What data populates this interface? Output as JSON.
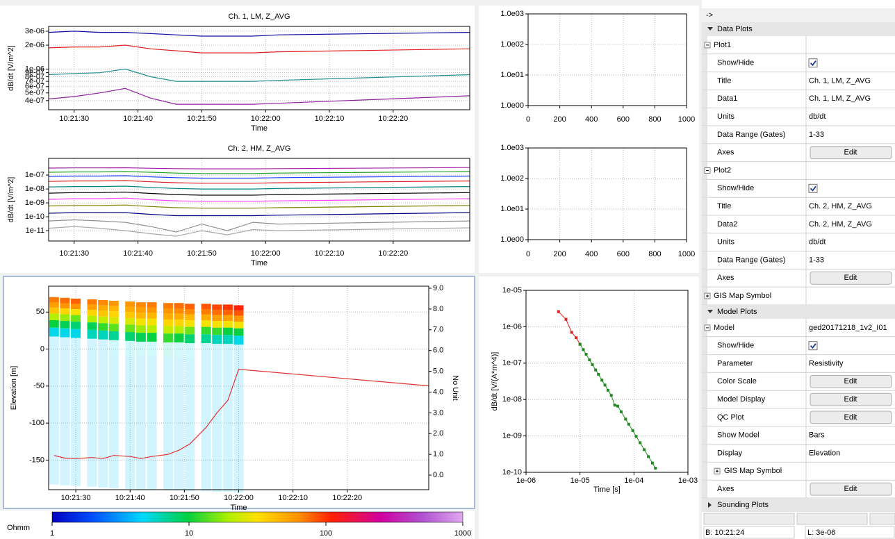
{
  "plots": [
    {
      "type": "line",
      "title": "Ch. 1, LM, Z_AVG",
      "ylabel": "dB/dt [V/m^2]",
      "xlabel": "Time",
      "log_y": true,
      "grid": true,
      "xlim": [
        "10:21:26",
        "10:22:32"
      ],
      "ylim": [
        3.07e-07,
        3.45e-06
      ],
      "xticks": [
        "10:21:30",
        "10:21:40",
        "10:21:50",
        "10:22:00",
        "10:22:10",
        "10:22:20"
      ],
      "yticks": [
        {
          "value": 3e-06,
          "label": "3e-06"
        },
        {
          "value": 2e-06,
          "label": "2e-06"
        },
        {
          "value": 1e-06,
          "label": "1e-06"
        },
        {
          "value": 9e-07,
          "label": "9e-07"
        },
        {
          "value": 8e-07,
          "label": "8e-07"
        },
        {
          "value": 7e-07,
          "label": "7e-07"
        },
        {
          "value": 6e-07,
          "label": "6e-07"
        },
        {
          "value": 5e-07,
          "label": "5e-07"
        },
        {
          "value": 4e-07,
          "label": "4e-07"
        }
      ],
      "x": [
        "10:21:26",
        "10:21:30",
        "10:21:34",
        "10:21:38",
        "10:21:42",
        "10:21:46",
        "10:21:50",
        "10:21:54",
        "10:21:58",
        "10:22:02",
        "10:22:32"
      ],
      "series": [
        {
          "color": "#1010a0",
          "values": [
            2.9e-06,
            3e-06,
            2.9e-06,
            2.9e-06,
            2.8e-06,
            2.7e-06,
            2.6e-06,
            2.6e-06,
            2.6e-06,
            2.7e-06,
            2.9e-06
          ]
        },
        {
          "color": "#e02020",
          "values": [
            1.85e-06,
            1.9e-06,
            1.9e-06,
            2e-06,
            1.8e-06,
            1.7e-06,
            1.6e-06,
            1.6e-06,
            1.6e-06,
            1.65e-06,
            1.8e-06
          ]
        },
        {
          "color": "#208c8c",
          "values": [
            8.5e-07,
            8.8e-07,
            9e-07,
            1e-06,
            8e-07,
            7e-07,
            7e-07,
            7e-07,
            7e-07,
            7.2e-07,
            8.5e-07
          ]
        },
        {
          "color": "#9020a0",
          "values": [
            4.2e-07,
            4.5e-07,
            5e-07,
            5.7e-07,
            4.3e-07,
            3.6e-07,
            3.6e-07,
            3.6e-07,
            3.6e-07,
            3.7e-07,
            4.6e-07
          ]
        }
      ]
    },
    {
      "type": "line",
      "title": "Ch. 2, HM, Z_AVG",
      "ylabel": "dB/dt [V/m^2]",
      "xlabel": "Time",
      "log_y": true,
      "grid": true,
      "xlim": [
        "10:21:26",
        "10:22:32"
      ],
      "ylim": [
        1.8e-12,
        1.6e-06
      ],
      "xticks": [
        "10:21:30",
        "10:21:40",
        "10:21:50",
        "10:22:00",
        "10:22:10",
        "10:22:20"
      ],
      "yticks": [
        {
          "value": 1e-07,
          "label": "1e-07"
        },
        {
          "value": 1e-08,
          "label": "1e-08"
        },
        {
          "value": 1e-09,
          "label": "1e-09"
        },
        {
          "value": 1e-10,
          "label": "1e-10"
        },
        {
          "value": 1e-11,
          "label": "1e-11"
        }
      ],
      "x": [
        "10:21:26",
        "10:21:30",
        "10:21:34",
        "10:21:38",
        "10:21:42",
        "10:21:46",
        "10:21:50",
        "10:21:54",
        "10:21:58",
        "10:22:02",
        "10:22:32"
      ],
      "series": [
        {
          "color": "#a020a0",
          "values": [
            3.2e-07,
            3.3e-07,
            3.3e-07,
            3.4e-07,
            3.1e-07,
            2.9e-07,
            2.8e-07,
            2.8e-07,
            2.8e-07,
            2.9e-07,
            3.5e-07
          ]
        },
        {
          "color": "#20a020",
          "values": [
            1.6e-07,
            1.7e-07,
            1.7e-07,
            1.8e-07,
            1.6e-07,
            1.4e-07,
            1.3e-07,
            1.3e-07,
            1.3e-07,
            1.4e-07,
            1.8e-07
          ]
        },
        {
          "color": "#2040ff",
          "values": [
            8e-08,
            8.5e-08,
            8.5e-08,
            9e-08,
            7.5e-08,
            6.5e-08,
            6e-08,
            6e-08,
            6e-08,
            6.5e-08,
            8.5e-08
          ]
        },
        {
          "color": "#e02020",
          "values": [
            3.5e-08,
            3.8e-08,
            3.8e-08,
            4e-08,
            3.3e-08,
            2.8e-08,
            2.6e-08,
            2.6e-08,
            2.6e-08,
            2.8e-08,
            3.8e-08
          ]
        },
        {
          "color": "#008080",
          "values": [
            1.4e-08,
            1.5e-08,
            1.5e-08,
            1.6e-08,
            1.3e-08,
            1.1e-08,
            1e-08,
            1e-08,
            1e-08,
            1.1e-08,
            1.5e-08
          ]
        },
        {
          "color": "#000000",
          "values": [
            5e-09,
            5.5e-09,
            5.5e-09,
            6e-09,
            4.8e-09,
            4e-09,
            3.6e-09,
            3.6e-09,
            3.6e-09,
            4e-09,
            5.5e-09
          ]
        },
        {
          "color": "#ff40ff",
          "values": [
            1.8e-09,
            2e-09,
            2e-09,
            2.2e-09,
            1.7e-09,
            1.4e-09,
            1.3e-09,
            1.3e-09,
            1.3e-09,
            1.4e-09,
            2e-09
          ]
        },
        {
          "color": "#808000",
          "values": [
            6e-10,
            6.5e-10,
            6.5e-10,
            7e-10,
            5.5e-10,
            4.5e-10,
            4.2e-10,
            4.2e-10,
            4.2e-10,
            4.5e-10,
            6.5e-10
          ]
        },
        {
          "color": "#000080",
          "values": [
            1.8e-10,
            2e-10,
            2e-10,
            2e-10,
            1.5e-10,
            1.2e-10,
            1.2e-10,
            1.2e-10,
            1.2e-10,
            1.3e-10,
            2e-10
          ]
        },
        {
          "color": "#909090",
          "values": [
            5e-11,
            6e-11,
            5e-11,
            4e-11,
            2e-11,
            8e-12,
            3e-11,
            1e-11,
            4e-11,
            3e-11,
            5e-11
          ]
        },
        {
          "color": "#a8a8a8",
          "values": [
            1.5e-11,
            2e-11,
            1.5e-11,
            1e-11,
            6e-12,
            4e-12,
            1e-11,
            5e-12,
            1.2e-11,
            1e-11,
            1.6e-11
          ]
        }
      ]
    },
    {
      "type": "empty",
      "log_y": true,
      "grid": true,
      "xlim": [
        0,
        1000
      ],
      "ylim": [
        1,
        1000
      ],
      "xticks": [
        0,
        200,
        400,
        600,
        800,
        1000
      ],
      "yticks": [
        {
          "value": 1000,
          "label": "1.0e03"
        },
        {
          "value": 100,
          "label": "1.0e02"
        },
        {
          "value": 10,
          "label": "1.0e01"
        },
        {
          "value": 1,
          "label": "1.0e00"
        }
      ]
    },
    {
      "type": "empty",
      "log_y": true,
      "grid": true,
      "xlim": [
        0,
        1000
      ],
      "ylim": [
        1,
        1000
      ],
      "xticks": [
        0,
        200,
        400,
        600,
        800,
        1000
      ],
      "yticks": [
        {
          "value": 1000,
          "label": "1.0e03"
        },
        {
          "value": 100,
          "label": "1.0e02"
        },
        {
          "value": 10,
          "label": "1.0e01"
        },
        {
          "value": 1,
          "label": "1.0e00"
        }
      ]
    },
    {
      "type": "model",
      "ylabel": "Elevation [m]",
      "y2label": "No Unit",
      "xlabel": "Time",
      "grid": true,
      "xlim": [
        "10:21:25",
        "10:22:35"
      ],
      "ylim": [
        -190,
        85
      ],
      "y2lim": [
        -0.7,
        9.1
      ],
      "xticks": [
        "10:21:30",
        "10:21:40",
        "10:21:50",
        "10:22:00",
        "10:22:10",
        "10:22:20"
      ],
      "yticks": [
        50,
        0,
        -50,
        -100,
        -150
      ],
      "y2ticks": [
        {
          "value": 9,
          "label": "9.0"
        },
        {
          "value": 8,
          "label": "8.0"
        },
        {
          "value": 7,
          "label": "7.0"
        },
        {
          "value": 6,
          "label": "6.0"
        },
        {
          "value": 5,
          "label": "5.0"
        },
        {
          "value": 4,
          "label": "4.0"
        },
        {
          "value": 3,
          "label": "3.0"
        },
        {
          "value": 2,
          "label": "2.0"
        },
        {
          "value": 1,
          "label": "1.0"
        },
        {
          "value": 0,
          "label": "0.0"
        }
      ],
      "columns": {
        "x": [
          "10:21:26",
          "10:21:28",
          "10:21:30",
          "10:21:33",
          "10:21:35",
          "10:21:37",
          "10:21:40",
          "10:21:42",
          "10:21:44",
          "10:21:47",
          "10:21:49",
          "10:21:51",
          "10:21:54",
          "10:21:56",
          "10:21:58",
          "10:22:00"
        ],
        "top": [
          70,
          69,
          68,
          67,
          66,
          65,
          64,
          63,
          63,
          62,
          62,
          61,
          61,
          60,
          60,
          59
        ],
        "layer_thickness": [
          7,
          7,
          8,
          9,
          10,
          12,
          20,
          180
        ],
        "resistivity": [
          [
            70,
            55,
            40,
            20,
            10,
            5,
            4,
            4
          ],
          [
            75,
            60,
            35,
            18,
            9,
            5,
            4,
            4
          ],
          [
            80,
            60,
            30,
            15,
            8,
            5,
            4,
            4
          ],
          [
            70,
            55,
            35,
            20,
            9,
            6,
            4,
            4
          ],
          [
            65,
            50,
            40,
            22,
            12,
            6,
            4,
            4
          ],
          [
            60,
            45,
            35,
            25,
            14,
            7,
            5,
            4
          ],
          [
            60,
            50,
            40,
            25,
            15,
            8,
            5,
            4
          ],
          [
            65,
            55,
            45,
            30,
            18,
            9,
            5,
            4
          ],
          [
            70,
            60,
            45,
            30,
            20,
            10,
            5,
            4
          ],
          [
            70,
            60,
            50,
            35,
            22,
            12,
            6,
            4
          ],
          [
            75,
            65,
            50,
            35,
            20,
            10,
            5,
            4
          ],
          [
            80,
            65,
            45,
            30,
            15,
            8,
            5,
            4
          ],
          [
            85,
            70,
            50,
            30,
            12,
            7,
            4,
            4
          ],
          [
            90,
            75,
            55,
            30,
            12,
            6,
            4,
            4
          ],
          [
            100,
            80,
            55,
            30,
            10,
            6,
            4,
            4
          ],
          [
            110,
            85,
            60,
            30,
            10,
            5,
            4,
            4
          ]
        ]
      },
      "line": {
        "color": "#e03030",
        "axis": "y2",
        "x": [
          "10:21:26",
          "10:21:28",
          "10:21:30",
          "10:21:33",
          "10:21:35",
          "10:21:37",
          "10:21:40",
          "10:21:42",
          "10:21:44",
          "10:21:47",
          "10:21:49",
          "10:21:51",
          "10:21:54",
          "10:21:56",
          "10:21:58",
          "10:22:00",
          "10:22:35"
        ],
        "values": [
          0.95,
          0.82,
          0.8,
          0.85,
          0.8,
          0.95,
          0.9,
          0.8,
          0.9,
          1.0,
          1.2,
          1.5,
          2.3,
          3.0,
          3.6,
          5.1,
          4.3
        ]
      }
    },
    {
      "type": "sounding",
      "xlabel": "Time [s]",
      "ylabel": "dB/dt [V/(A*m^4)]",
      "log_x": true,
      "log_y": true,
      "grid": true,
      "xlim": [
        1e-06,
        0.001
      ],
      "ylim": [
        1e-10,
        1e-05
      ],
      "xticks": [
        {
          "value": 1e-06,
          "label": "1e-06"
        },
        {
          "value": 1e-05,
          "label": "1e-05"
        },
        {
          "value": 0.0001,
          "label": "1e-04"
        },
        {
          "value": 0.001,
          "label": "1e-03"
        }
      ],
      "yticks": [
        {
          "value": 1e-05,
          "label": "1e-05"
        },
        {
          "value": 1e-06,
          "label": "1e-06"
        },
        {
          "value": 1e-07,
          "label": "1e-07"
        },
        {
          "value": 1e-08,
          "label": "1e-08"
        },
        {
          "value": 1e-09,
          "label": "1e-09"
        },
        {
          "value": 1e-10,
          "label": "1e-10"
        }
      ],
      "series": [
        {
          "color": "#e02020",
          "x": [
            4e-06,
            5.5e-06,
            7e-06,
            8.5e-06,
            1e-05
          ],
          "values": [
            2.6e-06,
            1.6e-06,
            7e-07,
            5e-07,
            3.3e-07
          ]
        },
        {
          "color": "#208a20",
          "x": [
            1e-05,
            1.15e-05,
            1.3e-05,
            1.5e-05,
            1.7e-05,
            1.95e-05,
            2.2e-05,
            2.55e-05,
            2.9e-05,
            3.3e-05,
            3.8e-05,
            4.4e-05,
            5e-05,
            5.8e-05,
            7e-05,
            8e-05,
            9.5e-05,
            0.00011,
            0.00013,
            0.000155,
            0.000185,
            0.00022,
            0.00025
          ],
          "values": [
            3.3e-07,
            2.35e-07,
            1.75e-07,
            1.23e-07,
            9.1e-08,
            6.5e-08,
            4.9e-08,
            3.4e-08,
            2.5e-08,
            1.8e-08,
            1.3e-08,
            7e-09,
            6.6e-09,
            4.6e-09,
            2.9e-09,
            2.1e-09,
            1.4e-09,
            9.7e-10,
            6.5e-10,
            4.2e-10,
            2.7e-10,
            1.8e-10,
            1.3e-10
          ]
        }
      ]
    }
  ],
  "colorbar": {
    "label": "Ohmm",
    "lim": [
      1,
      1000
    ],
    "ticks": [
      1,
      10,
      100,
      1000
    ]
  },
  "panel": {
    "header": "->",
    "rows": [
      {
        "section": "Data Plots"
      },
      {
        "group": "Plot1"
      },
      {
        "label": "Show/Hide",
        "checked": true
      },
      {
        "label": "Title",
        "value": "Ch. 1, LM, Z_AVG"
      },
      {
        "label": "Data1",
        "value": "Ch. 1, LM, Z_AVG"
      },
      {
        "label": "Units",
        "value": "db/dt"
      },
      {
        "label": "Data Range (Gates)",
        "value": "1-33"
      },
      {
        "label": "Axes",
        "button": "Edit"
      },
      {
        "group": "Plot2"
      },
      {
        "label": "Show/Hide",
        "checked": true
      },
      {
        "label": "Title",
        "value": "Ch. 2, HM, Z_AVG"
      },
      {
        "label": "Data2",
        "value": "Ch. 2, HM, Z_AVG"
      },
      {
        "label": "Units",
        "value": "db/dt"
      },
      {
        "label": "Data Range (Gates)",
        "value": "1-33"
      },
      {
        "label": "Axes",
        "button": "Edit"
      },
      {
        "group": "GIS Map Symbol",
        "collapsed": true
      },
      {
        "section": "Model Plots"
      },
      {
        "group": "Model",
        "value": "ged20171218_1v2_I01"
      },
      {
        "label": "Show/Hide",
        "checked": true
      },
      {
        "label": "Parameter",
        "value": "Resistivity"
      },
      {
        "label": "Color Scale",
        "button": "Edit"
      },
      {
        "label": "Model Display",
        "button": "Edit"
      },
      {
        "label": "QC Plot",
        "button": "Edit"
      },
      {
        "label": "Show Model",
        "value": "Bars"
      },
      {
        "label": "Display",
        "value": "Elevation"
      },
      {
        "label": "GIS Map Symbol",
        "collapsed": true
      },
      {
        "label": "Axes",
        "button": "Edit"
      },
      {
        "section": "Sounding Plots",
        "collapsed": true
      }
    ]
  },
  "status": [
    "B: 10:21:24",
    "L: 3e-06"
  ]
}
